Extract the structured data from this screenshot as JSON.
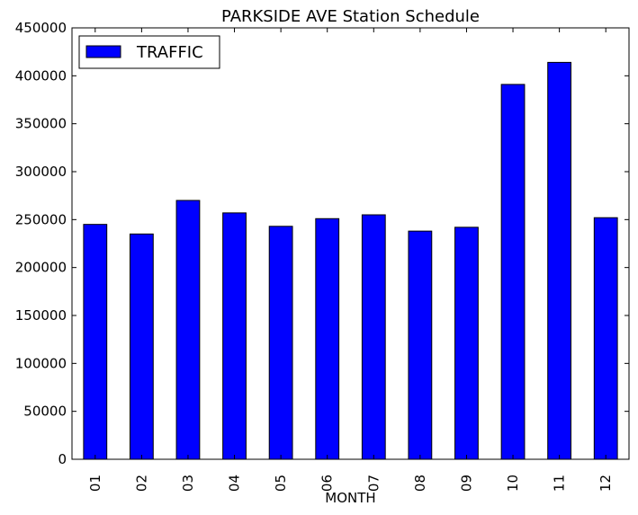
{
  "chart_data": {
    "type": "bar",
    "title": "PARKSIDE AVE Station Schedule",
    "xlabel": "MONTH",
    "ylabel": "",
    "categories": [
      "01",
      "02",
      "03",
      "04",
      "05",
      "06",
      "07",
      "08",
      "09",
      "10",
      "11",
      "12"
    ],
    "series": [
      {
        "name": "TRAFFIC",
        "color": "#0000ff",
        "values": [
          245000,
          235000,
          270000,
          257000,
          243000,
          251000,
          255000,
          238000,
          242000,
          391000,
          414000,
          252000
        ]
      }
    ],
    "ylim": [
      0,
      450000
    ],
    "yticks": [
      "0",
      "50000",
      "100000",
      "150000",
      "200000",
      "250000",
      "300000",
      "350000",
      "400000",
      "450000"
    ],
    "grid": false,
    "legend_position": "top-left"
  }
}
